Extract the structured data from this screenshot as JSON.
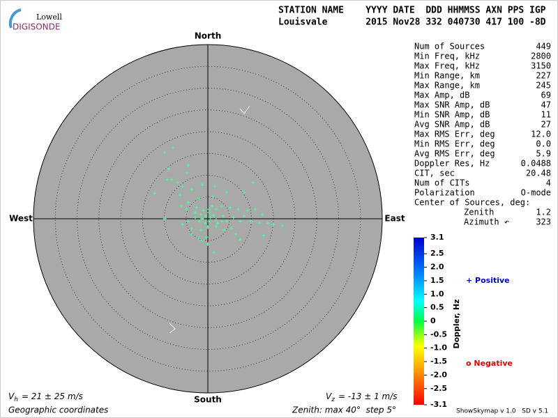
{
  "header": {
    "logo_top": "Lowell",
    "logo_bottom": "DIGISONDE",
    "columns": "STATION NAME    YYYY DATE  DDD HHMMSS AXN PPS IGP",
    "values": "Louisvale       2015 Nov28 332 040730 417 100 -8D"
  },
  "skymap": {
    "directions": {
      "north": "North",
      "south": "South",
      "east": "East",
      "west": "West"
    },
    "color": "#44ff99",
    "points": {
      "east": [
        -9.9,
        -8.0,
        -4.5,
        -4.8,
        -9.0,
        -8.3,
        -6.9,
        -5.8,
        -9.3,
        -12.2,
        -6.4,
        -3.7,
        -1.3,
        1.6,
        4.3,
        10.4,
        8.3,
        1.1,
        -2.1,
        -4.5,
        -6.1,
        -2.6,
        -1.0,
        0.3,
        1.9,
        3.2,
        5.1,
        7.0,
        9.1,
        10.9,
        12.5,
        13.8,
        15.0,
        17.1,
        11.8,
        9.9,
        7.5,
        5.9,
        3.5,
        1.9,
        0.3,
        -1.3,
        -2.9,
        -4.5,
        -5.8,
        -3.7,
        -1.6,
        0.0,
        1.9,
        3.8,
        5.4,
        7.4,
        6.4,
        -0.3,
        -2.1,
        -3.7,
        0.0,
        1.4,
        -1.3,
        -9.9,
        -1.6,
        -0.5,
        0.6,
        1.3,
        -0.6,
        -1.9,
        2.2,
        3.2,
        0.3,
        1.0,
        -2.9,
        -4.8,
        4.3,
        8.3,
        12.8
      ],
      "north": [
        15.2,
        16.3,
        12.3,
        10.6,
        11.5,
        9.0,
        8.3,
        7.4,
        9.0,
        5.8,
        5.4,
        6.7,
        7.8,
        7.4,
        6.1,
        8.3,
        6.1,
        5.1,
        4.6,
        3.8,
        3.0,
        2.6,
        1.9,
        1.4,
        2.2,
        2.9,
        2.6,
        2.2,
        1.9,
        2.2,
        1.0,
        -1.0,
        -1.3,
        -1.6,
        -1.0,
        -0.6,
        -0.6,
        0.3,
        0.6,
        -0.2,
        -0.6,
        0.0,
        0.3,
        -0.6,
        -1.3,
        -2.2,
        -2.6,
        -1.9,
        -1.8,
        -2.6,
        -2.2,
        -4.8,
        -3.5,
        -4.2,
        -4.5,
        -3.5,
        -5.8,
        -7.7,
        -5.0,
        0.0,
        1.0,
        0.6,
        0.3,
        0.8,
        -1.0,
        -0.6,
        -1.0,
        -0.6,
        2.2,
        2.9,
        1.4,
        2.2,
        -0.6,
        0.6,
        -3.8
      ]
    }
  },
  "stats": {
    "rows": [
      [
        "Num of Sources",
        "449"
      ],
      [
        "Min Freq, kHz",
        "2800"
      ],
      [
        "Max Freq, kHz",
        "3150"
      ],
      [
        "Min Range, km",
        "227"
      ],
      [
        "Max Range, km",
        "245"
      ],
      [
        "Max Amp, dB",
        "69"
      ],
      [
        "Max SNR Amp, dB",
        "47"
      ],
      [
        "Min SNR Amp, dB",
        "11"
      ],
      [
        "Avg SNR Amp, dB",
        "27"
      ],
      [
        "Max RMS Err, deg",
        "12.0"
      ],
      [
        "Min RMS Err, deg",
        "0.0"
      ],
      [
        "Avg RMS Err, deg",
        "5.9"
      ],
      [
        "Doppler Res, Hz",
        "0.0488"
      ],
      [
        "CIT, sec",
        "20.48"
      ],
      [
        "Num of CITs",
        "4"
      ],
      [
        "Polarization",
        "O-mode"
      ]
    ],
    "center_title": "Center of Sources, deg:",
    "center": [
      [
        "Zenith",
        "1.2"
      ],
      [
        "Azimuth ↶",
        "323"
      ]
    ]
  },
  "colorbar": {
    "title": "Doppler, Hz",
    "lim": [
      -3.1,
      3.1
    ],
    "ticks": [
      3.1,
      2.5,
      {
        "value": 2,
        "label": "2.0"
      },
      1.5,
      {
        "value": 1,
        "label": "1.0"
      },
      0.5,
      0,
      -0.5,
      {
        "value": -1,
        "label": "-1.0"
      },
      -1.5,
      {
        "value": -2,
        "label": "-2.0"
      },
      -2.5,
      -3.1
    ],
    "positive": "+ Positive",
    "negative": "o Negative"
  },
  "footer": {
    "vh": {
      "symbol": "V",
      "sub": "h",
      "text": "= 21 ± 25 m/s"
    },
    "vz": {
      "symbol": "V",
      "sub": "z",
      "text": "= -13 ± 1 m/s"
    },
    "coords": "Geographic coordinates",
    "zenith": "Zenith: max 40°  step 5°",
    "version": "ShowSkymap v 1.0   SD v 5.1"
  }
}
